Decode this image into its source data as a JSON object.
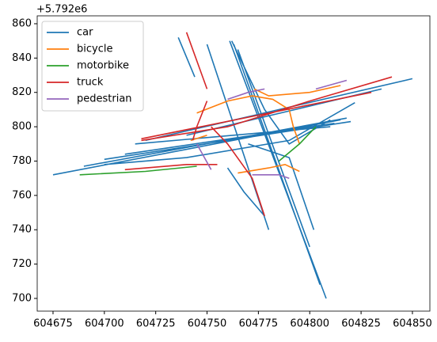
{
  "chart_data": {
    "type": "line",
    "y_offset_text": "+5.792e6",
    "xlim": [
      604667.3,
      604858.5
    ],
    "ylim": [
      692.6,
      864.6
    ],
    "xticks": [
      604675,
      604700,
      604725,
      604750,
      604775,
      604800,
      604825,
      604850
    ],
    "yticks": [
      700,
      720,
      740,
      760,
      780,
      800,
      820,
      840,
      860
    ],
    "legend": "upper left",
    "series": [
      {
        "name": "car",
        "color": "#1f77b4",
        "x": [
          604675,
          604815,
          null,
          604690,
          604818,
          null,
          604700,
          604820,
          null,
          604710,
          604812,
          null,
          604715,
          604810,
          null,
          604720,
          604850,
          null,
          604740,
          604835,
          null,
          604763,
          604805,
          null,
          604761,
          604808,
          null,
          604765,
          604800,
          null,
          604750,
          604780,
          null,
          604736,
          604744,
          null,
          604762,
          604778,
          604790,
          604810,
          null,
          604760,
          604768,
          604778,
          null,
          604770,
          604790,
          604802,
          null,
          604700,
          604740,
          604790,
          604822
        ],
        "values": [
          772,
          804,
          null,
          777,
          805,
          null,
          781,
          803,
          null,
          784,
          802,
          null,
          790,
          800,
          null,
          792,
          828,
          null,
          795,
          822,
          null,
          848,
          708,
          null,
          850,
          700,
          null,
          845,
          730,
          null,
          848,
          740,
          null,
          852,
          829,
          null,
          850,
          810,
          790,
          804,
          null,
          776,
          762,
          748,
          null,
          790,
          782,
          740,
          null,
          778,
          782,
          792,
          814
        ]
      },
      {
        "name": "bicycle",
        "color": "#ff7f0e",
        "x": [
          604745,
          604760,
          604772,
          604782,
          604790,
          604792,
          604795,
          null,
          604773,
          604780,
          604800,
          604815,
          null,
          604765,
          604780,
          604788,
          604795,
          null,
          604742,
          604750
        ],
        "values": [
          808,
          815,
          818,
          816,
          810,
          800,
          790,
          null,
          822,
          818,
          820,
          824,
          null,
          773,
          776,
          778,
          774,
          null,
          792,
          795
        ]
      },
      {
        "name": "motorbike",
        "color": "#2ca02c",
        "x": [
          604688,
          604720,
          604745,
          null,
          604785,
          604795,
          604803
        ],
        "values": [
          772,
          774,
          777,
          null,
          780,
          790,
          800
        ]
      },
      {
        "name": "truck",
        "color": "#d62728",
        "x": [
          604740,
          604750,
          null,
          604718,
          604760,
          604800,
          604840,
          null,
          604718,
          604830,
          null,
          604710,
          604740,
          604755,
          null,
          604752,
          604760,
          604772,
          604778,
          null,
          604750,
          604745,
          604743
        ],
        "values": [
          855,
          822,
          null,
          792,
          800,
          815,
          829,
          null,
          793,
          820,
          null,
          775,
          778,
          778,
          null,
          800,
          790,
          770,
          748,
          null,
          815,
          800,
          792
        ]
      },
      {
        "name": "pedestrian",
        "color": "#9467bd",
        "x": [
          604760,
          604770,
          604778,
          null,
          604803,
          604818,
          null,
          604745,
          604752,
          null,
          604772,
          604785,
          604790
        ],
        "values": [
          816,
          820,
          822,
          null,
          822,
          827,
          null,
          790,
          775,
          null,
          772,
          772,
          770
        ]
      }
    ]
  }
}
